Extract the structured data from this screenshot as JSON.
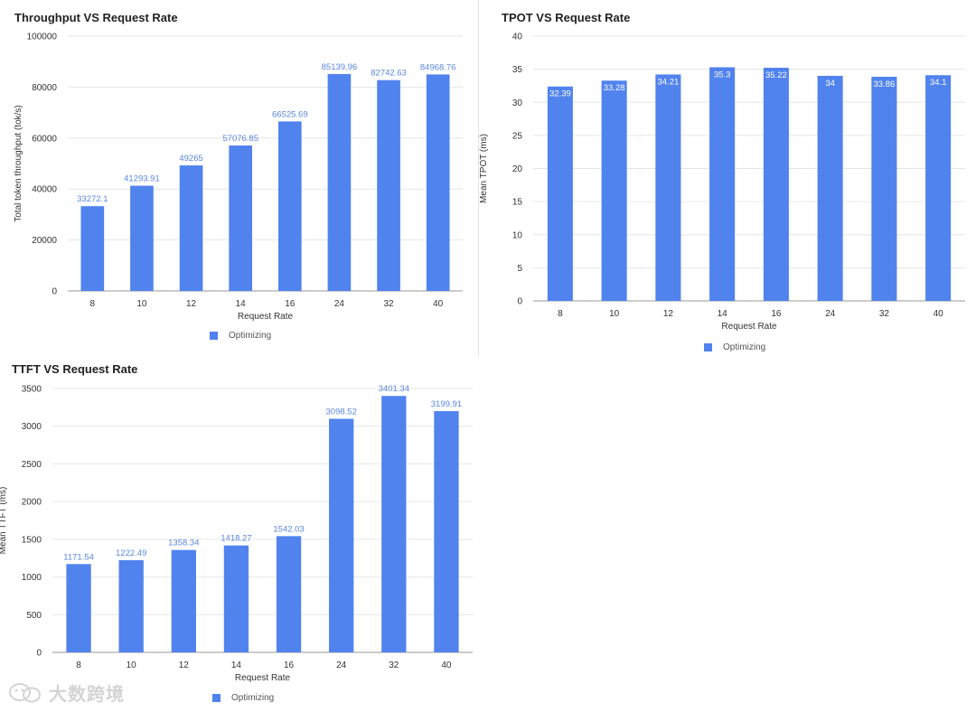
{
  "theme": {
    "bar_color": "#5183ee",
    "label_outside_color": "#5a86e2",
    "label_inside_color": "#ffffff",
    "grid_color": "#e6e6e6",
    "axis_color": "#999999"
  },
  "watermark": {
    "text": "大数跨境",
    "icon": "wechat-bubbles-logo"
  },
  "chart_data": [
    {
      "type": "bar",
      "title": "Throughput VS Request Rate",
      "xlabel": "Request Rate",
      "ylabel": "Total token throughput (tok/s)",
      "categories": [
        "8",
        "10",
        "12",
        "14",
        "16",
        "24",
        "32",
        "40"
      ],
      "series": [
        {
          "name": "Optimizing",
          "values": [
            33272.1,
            41293.91,
            49265,
            57076.85,
            66525.69,
            85139.96,
            82742.63,
            84968.76
          ]
        }
      ],
      "ylim": [
        0,
        100000
      ],
      "yticks": [
        "0",
        "20000",
        "40000",
        "60000",
        "80000",
        "100000"
      ],
      "value_labels": [
        "33272.1",
        "41293.91",
        "49265",
        "57076.85",
        "66525.69",
        "85139.96",
        "82742.63",
        "84968.76"
      ],
      "label_position": "outside",
      "grid": true,
      "legend": "bottom-center"
    },
    {
      "type": "bar",
      "title": "TPOT VS Request Rate",
      "xlabel": "Request Rate",
      "ylabel": "Mean TPOT (ms)",
      "categories": [
        "8",
        "10",
        "12",
        "14",
        "16",
        "24",
        "32",
        "40"
      ],
      "series": [
        {
          "name": "Optimizing",
          "values": [
            32.39,
            33.28,
            34.21,
            35.3,
            35.22,
            34,
            33.86,
            34.1
          ]
        }
      ],
      "ylim": [
        0,
        40
      ],
      "yticks": [
        "0",
        "5",
        "10",
        "15",
        "20",
        "25",
        "30",
        "35",
        "40"
      ],
      "value_labels": [
        "32.39",
        "33.28",
        "34.21",
        "35.3",
        "35.22",
        "34",
        "33.86",
        "34.1"
      ],
      "label_position": "inside",
      "grid": true,
      "legend": "bottom-center"
    },
    {
      "type": "bar",
      "title": "TTFT VS Request Rate",
      "xlabel": "Request Rate",
      "ylabel": "Mean TTFT (ms)",
      "categories": [
        "8",
        "10",
        "12",
        "14",
        "16",
        "24",
        "32",
        "40"
      ],
      "series": [
        {
          "name": "Optimizing",
          "values": [
            1171.54,
            1222.49,
            1358.34,
            1418.27,
            1542.03,
            3098.52,
            3401.34,
            3199.91
          ]
        }
      ],
      "ylim": [
        0,
        3500
      ],
      "yticks": [
        "0",
        "500",
        "1000",
        "1500",
        "2000",
        "2500",
        "3000",
        "3500"
      ],
      "value_labels": [
        "1171.54",
        "1222.49",
        "1358.34",
        "1418.27",
        "1542.03",
        "3098.52",
        "3401.34",
        "3199.91"
      ],
      "label_position": "outside",
      "grid": true,
      "legend": "bottom-center"
    }
  ]
}
